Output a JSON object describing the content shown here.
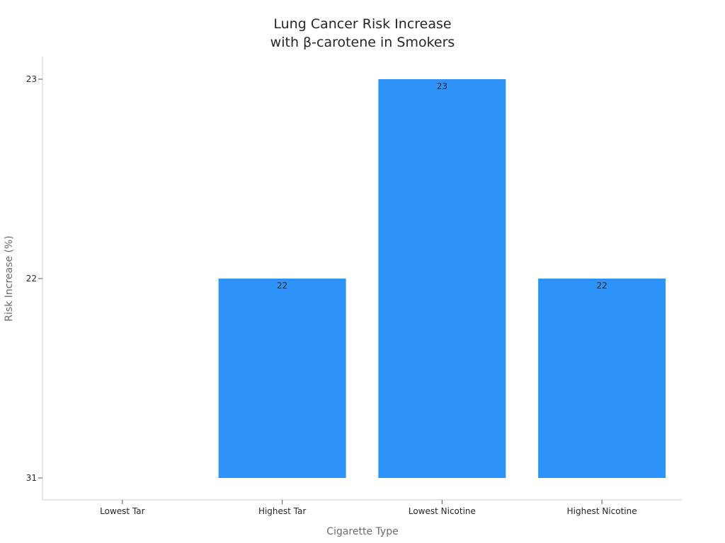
{
  "chart_data": {
    "type": "bar",
    "title_lines": [
      "Lung Cancer Risk Increase",
      "with β-carotene in Smokers"
    ],
    "xlabel": "Cigarette Type",
    "ylabel": "Risk Increase (%)",
    "categories": [
      "Lowest Tar",
      "Highest Tar",
      "Lowest Nicotine",
      "Highest Nicotine"
    ],
    "y_ticks": [
      "31",
      "22",
      "23"
    ],
    "values": [
      null,
      22,
      23,
      22
    ],
    "value_labels": [
      "",
      "22",
      "23",
      "22"
    ],
    "bar_color": "#2e93f8",
    "grid": false,
    "legend": "none"
  }
}
